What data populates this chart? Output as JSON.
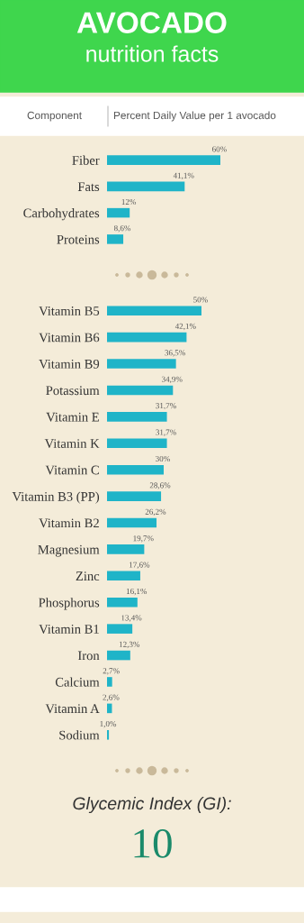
{
  "chart_data": [
    {
      "type": "bar",
      "title": "AVOCADO",
      "subtitle": "nutrition facts",
      "annotations": [
        "Component",
        "Percent Daily Value per 1 avocado"
      ],
      "orientation": "horizontal",
      "categories": [
        "Fiber",
        "Fats",
        "Carbohydrates",
        "Proteins"
      ],
      "color": "#1fb4c8",
      "values": [
        60,
        41.1,
        12,
        8.6
      ],
      "value_labels": [
        "60%",
        "41,1%",
        "12%",
        "8,6%"
      ]
    },
    {
      "type": "bar",
      "orientation": "horizontal",
      "categories": [
        "Vitamin B5",
        "Vitamin B6",
        "Vitamin B9",
        "Potassium",
        "Vitamin E",
        "Vitamin K",
        "Vitamin C",
        "Vitamin B3 (PP)",
        "Vitamin B2",
        "Magnesium",
        "Zinc",
        "Phosphorus",
        "Vitamin B1",
        "Iron",
        "Calcium",
        "Vitamin A",
        "Sodium"
      ],
      "color": "#1fb4c8",
      "values": [
        50,
        42.1,
        36.5,
        34.9,
        31.7,
        31.7,
        30,
        28.6,
        26.2,
        19.7,
        17.6,
        16.1,
        13.4,
        12.3,
        2.7,
        2.6,
        1.0
      ],
      "value_labels": [
        "50%",
        "42,1%",
        "36,5%",
        "34,9%",
        "31,7%",
        "31,7%",
        "30%",
        "28,6%",
        "26,2%",
        "19,7%",
        "17,6%",
        "16,1%",
        "13,4%",
        "12,3%",
        "2,7%",
        "2,6%",
        "1,0%"
      ]
    },
    {
      "type": "other",
      "title": "Glycemic Index (GI):",
      "annotations": [
        "10"
      ]
    }
  ]
}
